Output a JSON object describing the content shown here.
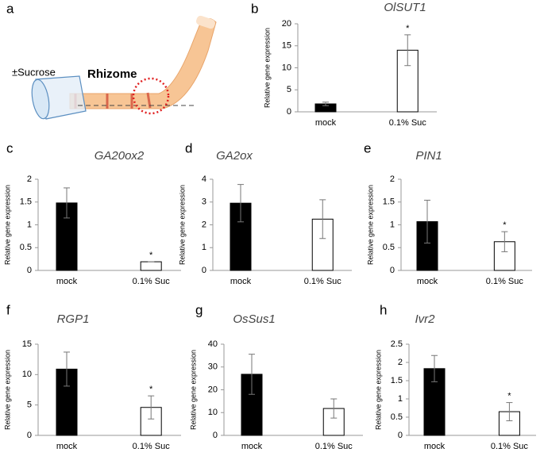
{
  "panel_a": {
    "label": "a",
    "texts": [
      "±Sucrose",
      "Rhizome"
    ]
  },
  "chart_data": [
    {
      "type": "bar",
      "label": "b",
      "title": "OlSUT1",
      "ylabel": "Relative gene expression",
      "categories": [
        "mock",
        "0.1% Suc"
      ],
      "values": [
        1.8,
        14
      ],
      "errors": [
        0.4,
        3.5
      ],
      "significance": [
        null,
        "*"
      ],
      "colors": [
        "#000000",
        "#ffffff"
      ],
      "ylim": [
        0,
        20
      ],
      "yticks": [
        0,
        5,
        10,
        15,
        20
      ]
    },
    {
      "type": "bar",
      "label": "c",
      "title": "GA20ox2",
      "ylabel": "Relative gene expression",
      "categories": [
        "mock",
        "0.1% Suc"
      ],
      "values": [
        1.48,
        0.19
      ],
      "errors": [
        0.33,
        0
      ],
      "significance": [
        null,
        "*"
      ],
      "colors": [
        "#000000",
        "#ffffff"
      ],
      "ylim": [
        0,
        2
      ],
      "yticks": [
        0,
        0.5,
        1,
        1.5,
        2
      ]
    },
    {
      "type": "bar",
      "label": "d",
      "title": "GA2ox",
      "ylabel": "Relative gene expression",
      "categories": [
        "mock",
        "0.1% Suc"
      ],
      "values": [
        2.95,
        2.25
      ],
      "errors": [
        0.82,
        0.85
      ],
      "significance": [
        null,
        null
      ],
      "colors": [
        "#000000",
        "#ffffff"
      ],
      "ylim": [
        0,
        4
      ],
      "yticks": [
        0,
        1,
        2,
        3,
        4
      ]
    },
    {
      "type": "bar",
      "label": "e",
      "title": "PIN1",
      "ylabel": "Relative gene expression",
      "categories": [
        "mock",
        "0.1% Suc"
      ],
      "values": [
        1.07,
        0.63
      ],
      "errors": [
        0.47,
        0.22
      ],
      "significance": [
        null,
        "*"
      ],
      "colors": [
        "#000000",
        "#ffffff"
      ],
      "ylim": [
        0,
        2
      ],
      "yticks": [
        0,
        0.5,
        1,
        1.5,
        2
      ]
    },
    {
      "type": "bar",
      "label": "f",
      "title": "RGP1",
      "ylabel": "Relative gene expression",
      "categories": [
        "mock",
        "0.1% Suc"
      ],
      "values": [
        10.9,
        4.6
      ],
      "errors": [
        2.8,
        1.9
      ],
      "significance": [
        null,
        "*"
      ],
      "colors": [
        "#000000",
        "#ffffff"
      ],
      "ylim": [
        0,
        15
      ],
      "yticks": [
        0,
        5,
        10,
        15
      ]
    },
    {
      "type": "bar",
      "label": "g",
      "title": "OsSus1",
      "ylabel": "Relative gene expression",
      "categories": [
        "mock",
        "0.1% Suc"
      ],
      "values": [
        26.8,
        11.8
      ],
      "errors": [
        8.8,
        4.2
      ],
      "significance": [
        null,
        null
      ],
      "colors": [
        "#000000",
        "#ffffff"
      ],
      "ylim": [
        0,
        40
      ],
      "yticks": [
        0,
        10,
        20,
        30,
        40
      ]
    },
    {
      "type": "bar",
      "label": "h",
      "title": "Ivr2",
      "ylabel": "Relative gene expression",
      "categories": [
        "mock",
        "0.1% Suc"
      ],
      "values": [
        1.83,
        0.65
      ],
      "errors": [
        0.36,
        0.25
      ],
      "significance": [
        null,
        "*"
      ],
      "colors": [
        "#000000",
        "#ffffff"
      ],
      "ylim": [
        0,
        2.5
      ],
      "yticks": [
        0,
        0.5,
        1,
        1.5,
        2,
        2.5
      ]
    }
  ]
}
